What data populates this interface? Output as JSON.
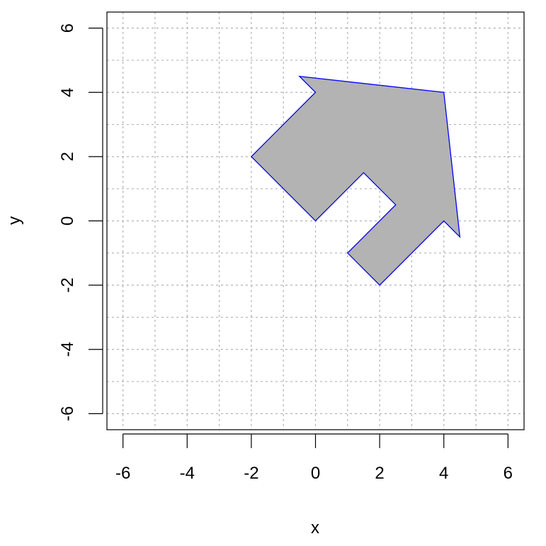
{
  "chart_data": {
    "type": "polygon",
    "title": "",
    "xlabel": "x",
    "ylabel": "y",
    "xlim": [
      -6.5,
      6.5
    ],
    "ylim": [
      -6.5,
      6.5
    ],
    "x_ticks": [
      -6,
      -4,
      -2,
      0,
      2,
      4,
      6
    ],
    "y_ticks": [
      -6,
      -4,
      -2,
      0,
      2,
      4,
      6
    ],
    "x_tick_labels": [
      "-6",
      "-4",
      "-2",
      "0",
      "2",
      "4",
      "6"
    ],
    "y_tick_labels": [
      "-6",
      "-4",
      "-2",
      "0",
      "2",
      "4",
      "6"
    ],
    "grid": true,
    "grid_step": 1,
    "polygon": {
      "fill_color": "#b3b3b3",
      "stroke_color": "#0000ff",
      "points": [
        {
          "x": -0.5,
          "y": 4.5
        },
        {
          "x": 4,
          "y": 4
        },
        {
          "x": 4.5,
          "y": -0.5
        },
        {
          "x": 4,
          "y": 0
        },
        {
          "x": 2,
          "y": -2
        },
        {
          "x": 1,
          "y": -1
        },
        {
          "x": 2.5,
          "y": 0.5
        },
        {
          "x": 1.5,
          "y": 1.5
        },
        {
          "x": 0,
          "y": 0
        },
        {
          "x": -2,
          "y": 2
        },
        {
          "x": 0,
          "y": 4
        }
      ]
    }
  }
}
